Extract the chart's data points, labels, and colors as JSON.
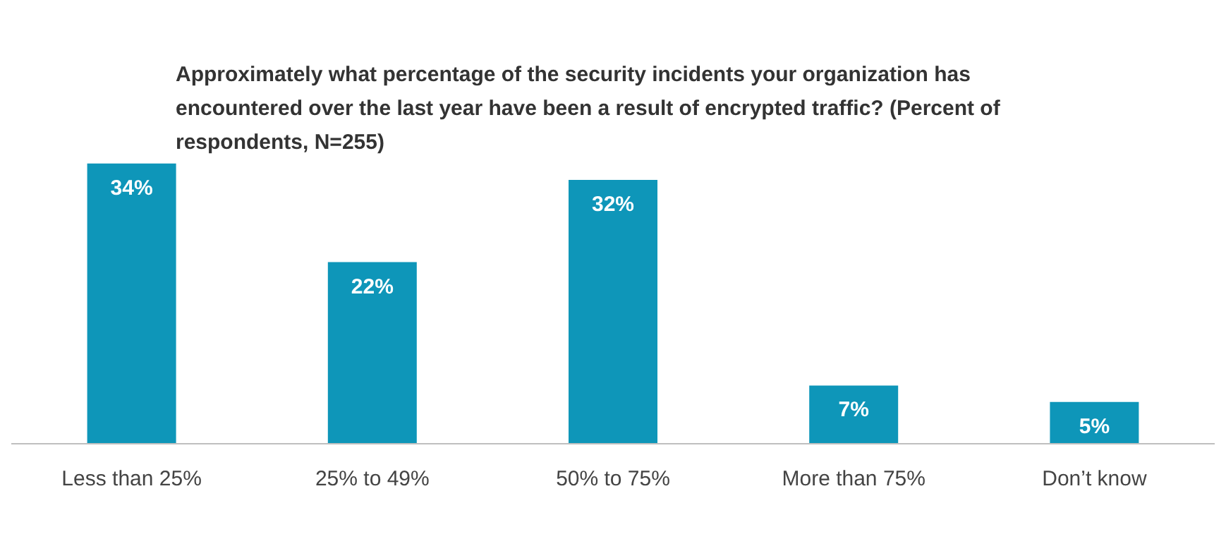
{
  "chart_data": {
    "type": "bar",
    "title": "Approximately what percentage of the security incidents your organization has encountered over the last year have been a result of encrypted traffic? (Percent of respondents, N=255)",
    "categories": [
      "Less than 25%",
      "25% to 49%",
      "50% to 75%",
      "More than 75%",
      "Don’t know"
    ],
    "values": [
      34,
      22,
      32,
      7,
      5
    ],
    "value_labels": [
      "34%",
      "22%",
      "32%",
      "7%",
      "5%"
    ],
    "color": "#0e96b9"
  }
}
